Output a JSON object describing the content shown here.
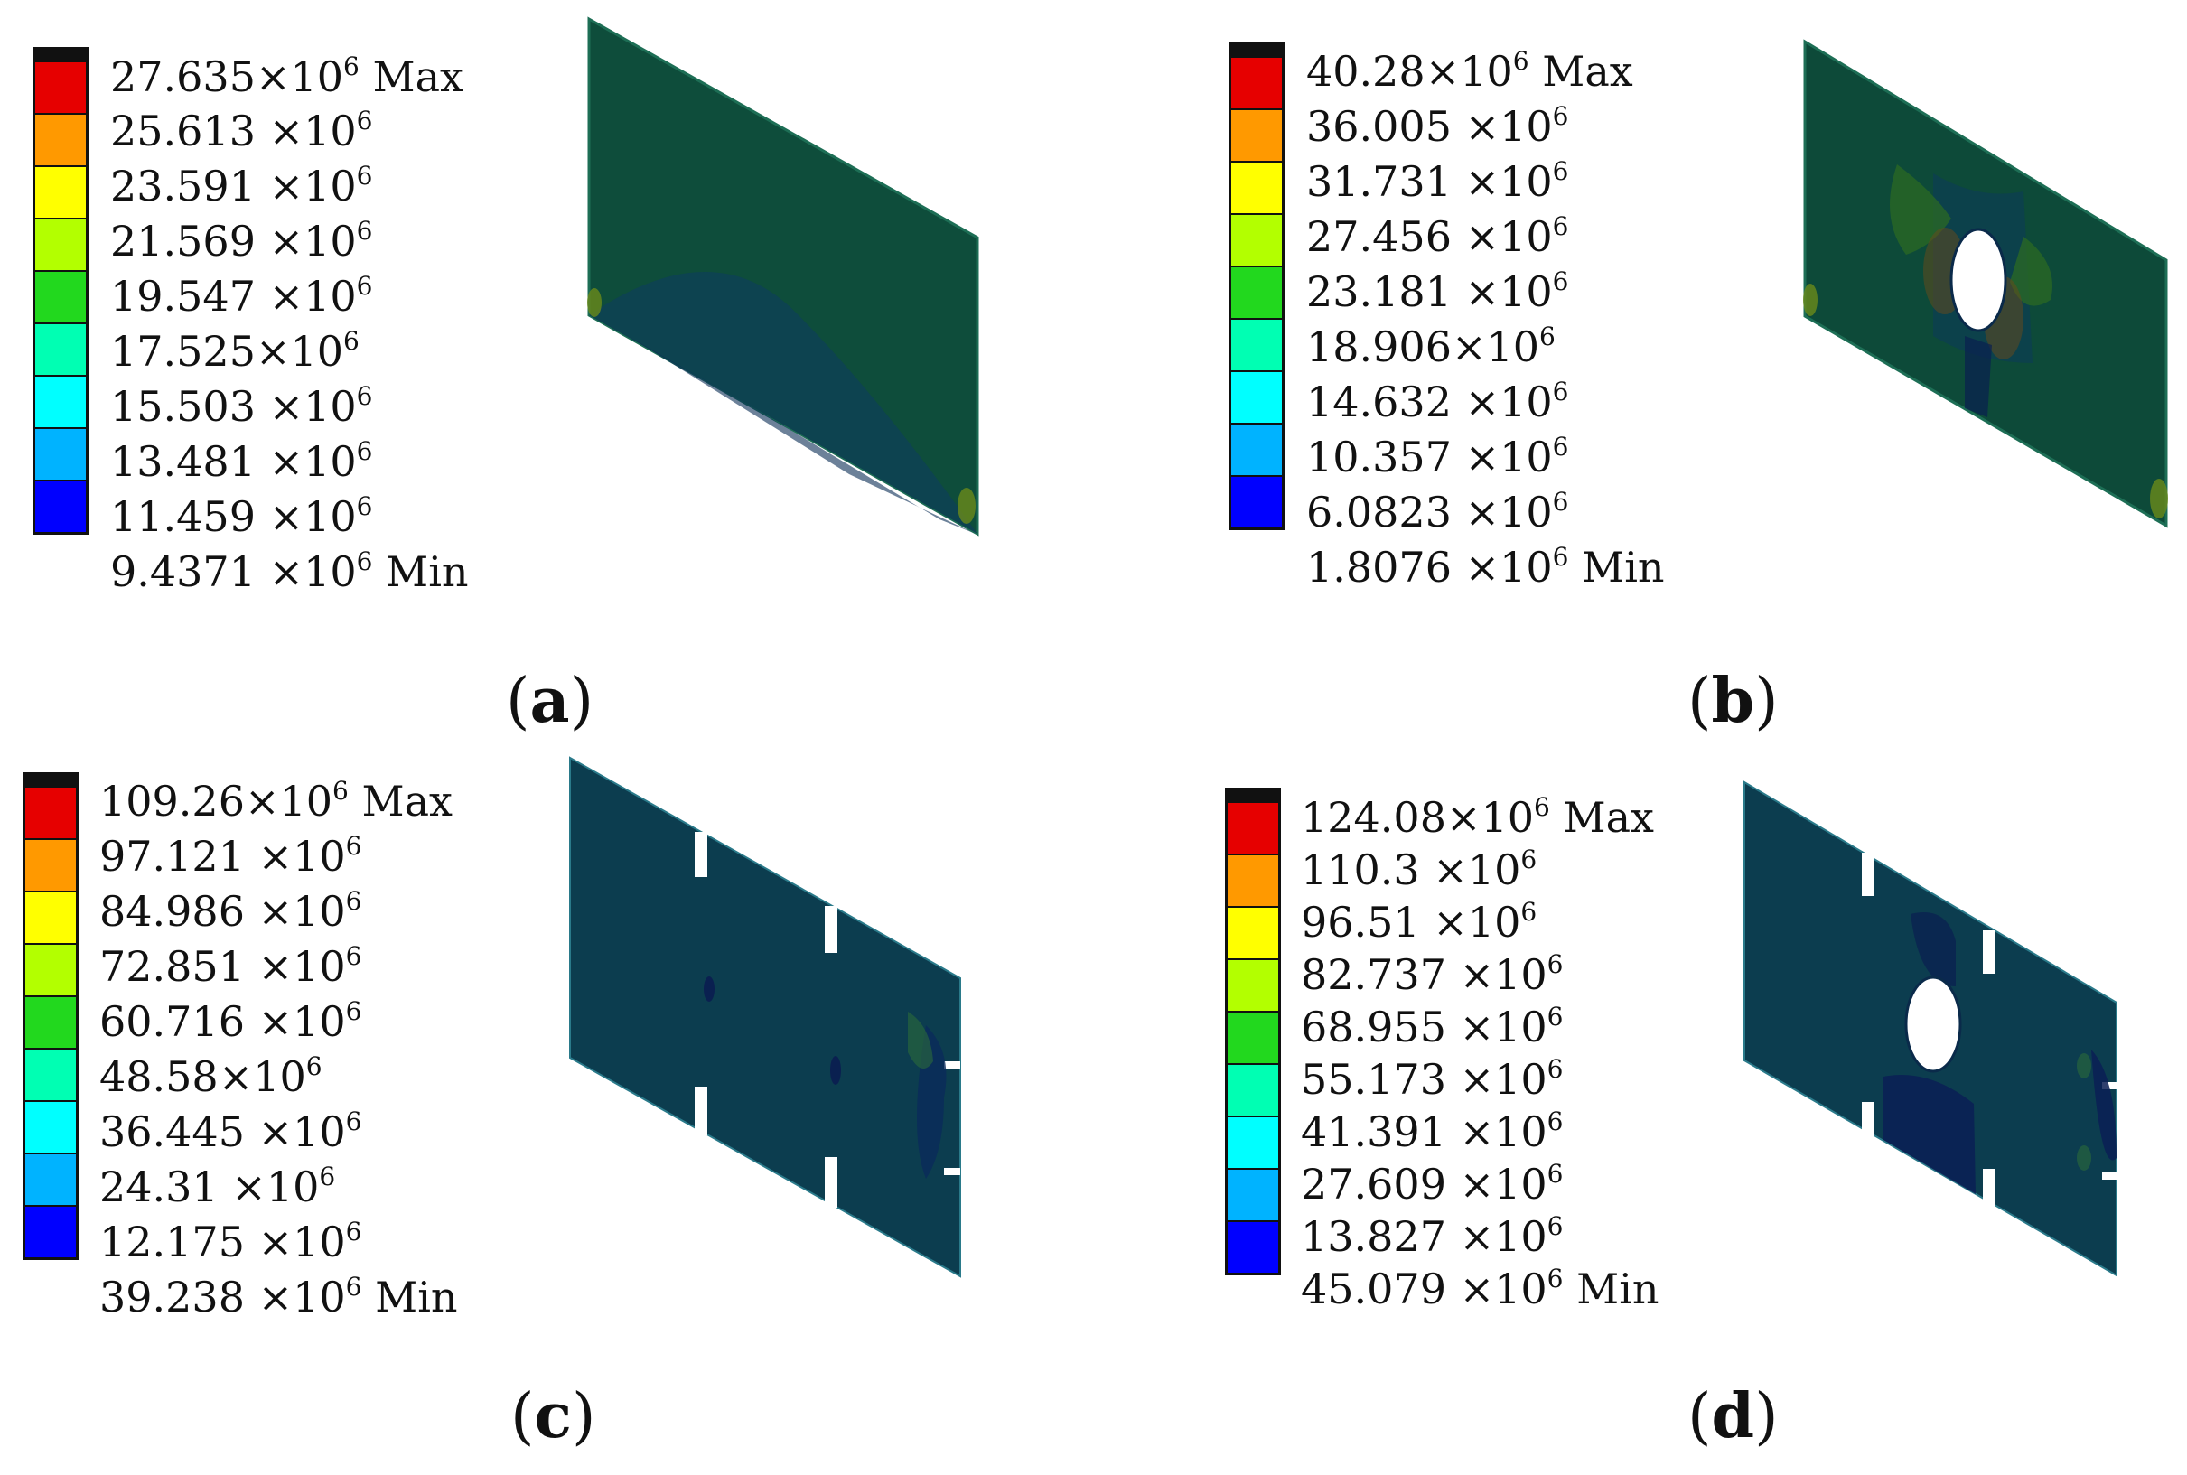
{
  "colors": {
    "scale": [
      "#e60000",
      "#ff9900",
      "#ffff00",
      "#b3ff00",
      "#22d81e",
      "#00ffb3",
      "#00ffff",
      "#00b3ff",
      "#0000ff"
    ],
    "plate_a": "#0e4a3a",
    "plate_b": "#0d4a39",
    "plate_cd": "#0c3d4f"
  },
  "panels": [
    {
      "caption": "(a)",
      "legend": [
        {
          "value": "27.635×10",
          "suffix": "Max"
        },
        {
          "value": "25.613 ×10",
          "suffix": ""
        },
        {
          "value": "23.591 ×10",
          "suffix": ""
        },
        {
          "value": "21.569 ×10",
          "suffix": ""
        },
        {
          "value": "19.547 ×10",
          "suffix": ""
        },
        {
          "value": "17.525×10",
          "suffix": ""
        },
        {
          "value": "15.503 ×10",
          "suffix": ""
        },
        {
          "value": "13.481 ×10",
          "suffix": ""
        },
        {
          "value": "11.459 ×10",
          "suffix": ""
        },
        {
          "value": "9.4371 ×10",
          "suffix": "Min"
        }
      ]
    },
    {
      "caption": "(b)",
      "legend": [
        {
          "value": "40.28×10",
          "suffix": "Max"
        },
        {
          "value": "36.005 ×10",
          "suffix": ""
        },
        {
          "value": "31.731 ×10",
          "suffix": ""
        },
        {
          "value": "27.456 ×10",
          "suffix": ""
        },
        {
          "value": "23.181 ×10",
          "suffix": ""
        },
        {
          "value": "18.906×10",
          "suffix": ""
        },
        {
          "value": "14.632 ×10",
          "suffix": ""
        },
        {
          "value": "10.357 ×10",
          "suffix": ""
        },
        {
          "value": "6.0823 ×10",
          "suffix": ""
        },
        {
          "value": "1.8076 ×10",
          "suffix": "Min"
        }
      ]
    },
    {
      "caption": "(c)",
      "legend": [
        {
          "value": "109.26×10",
          "suffix": "Max"
        },
        {
          "value": "97.121 ×10",
          "suffix": ""
        },
        {
          "value": "84.986 ×10",
          "suffix": ""
        },
        {
          "value": "72.851 ×10",
          "suffix": ""
        },
        {
          "value": "60.716 ×10",
          "suffix": ""
        },
        {
          "value": "48.58×10",
          "suffix": ""
        },
        {
          "value": "36.445 ×10",
          "suffix": ""
        },
        {
          "value": "24.31 ×10",
          "suffix": ""
        },
        {
          "value": "12.175 ×10",
          "suffix": ""
        },
        {
          "value": "39.238 ×10",
          "suffix": "Min"
        }
      ]
    },
    {
      "caption": "(d)",
      "legend": [
        {
          "value": "124.08×10",
          "suffix": "Max"
        },
        {
          "value": "110.3 ×10",
          "suffix": ""
        },
        {
          "value": "96.51 ×10",
          "suffix": ""
        },
        {
          "value": "82.737 ×10",
          "suffix": ""
        },
        {
          "value": "68.955 ×10",
          "suffix": ""
        },
        {
          "value": "55.173 ×10",
          "suffix": ""
        },
        {
          "value": "41.391 ×10",
          "suffix": ""
        },
        {
          "value": "27.609 ×10",
          "suffix": ""
        },
        {
          "value": "13.827 ×10",
          "suffix": ""
        },
        {
          "value": "45.079 ×10",
          "suffix": "Min"
        }
      ]
    }
  ],
  "exponent": "6"
}
